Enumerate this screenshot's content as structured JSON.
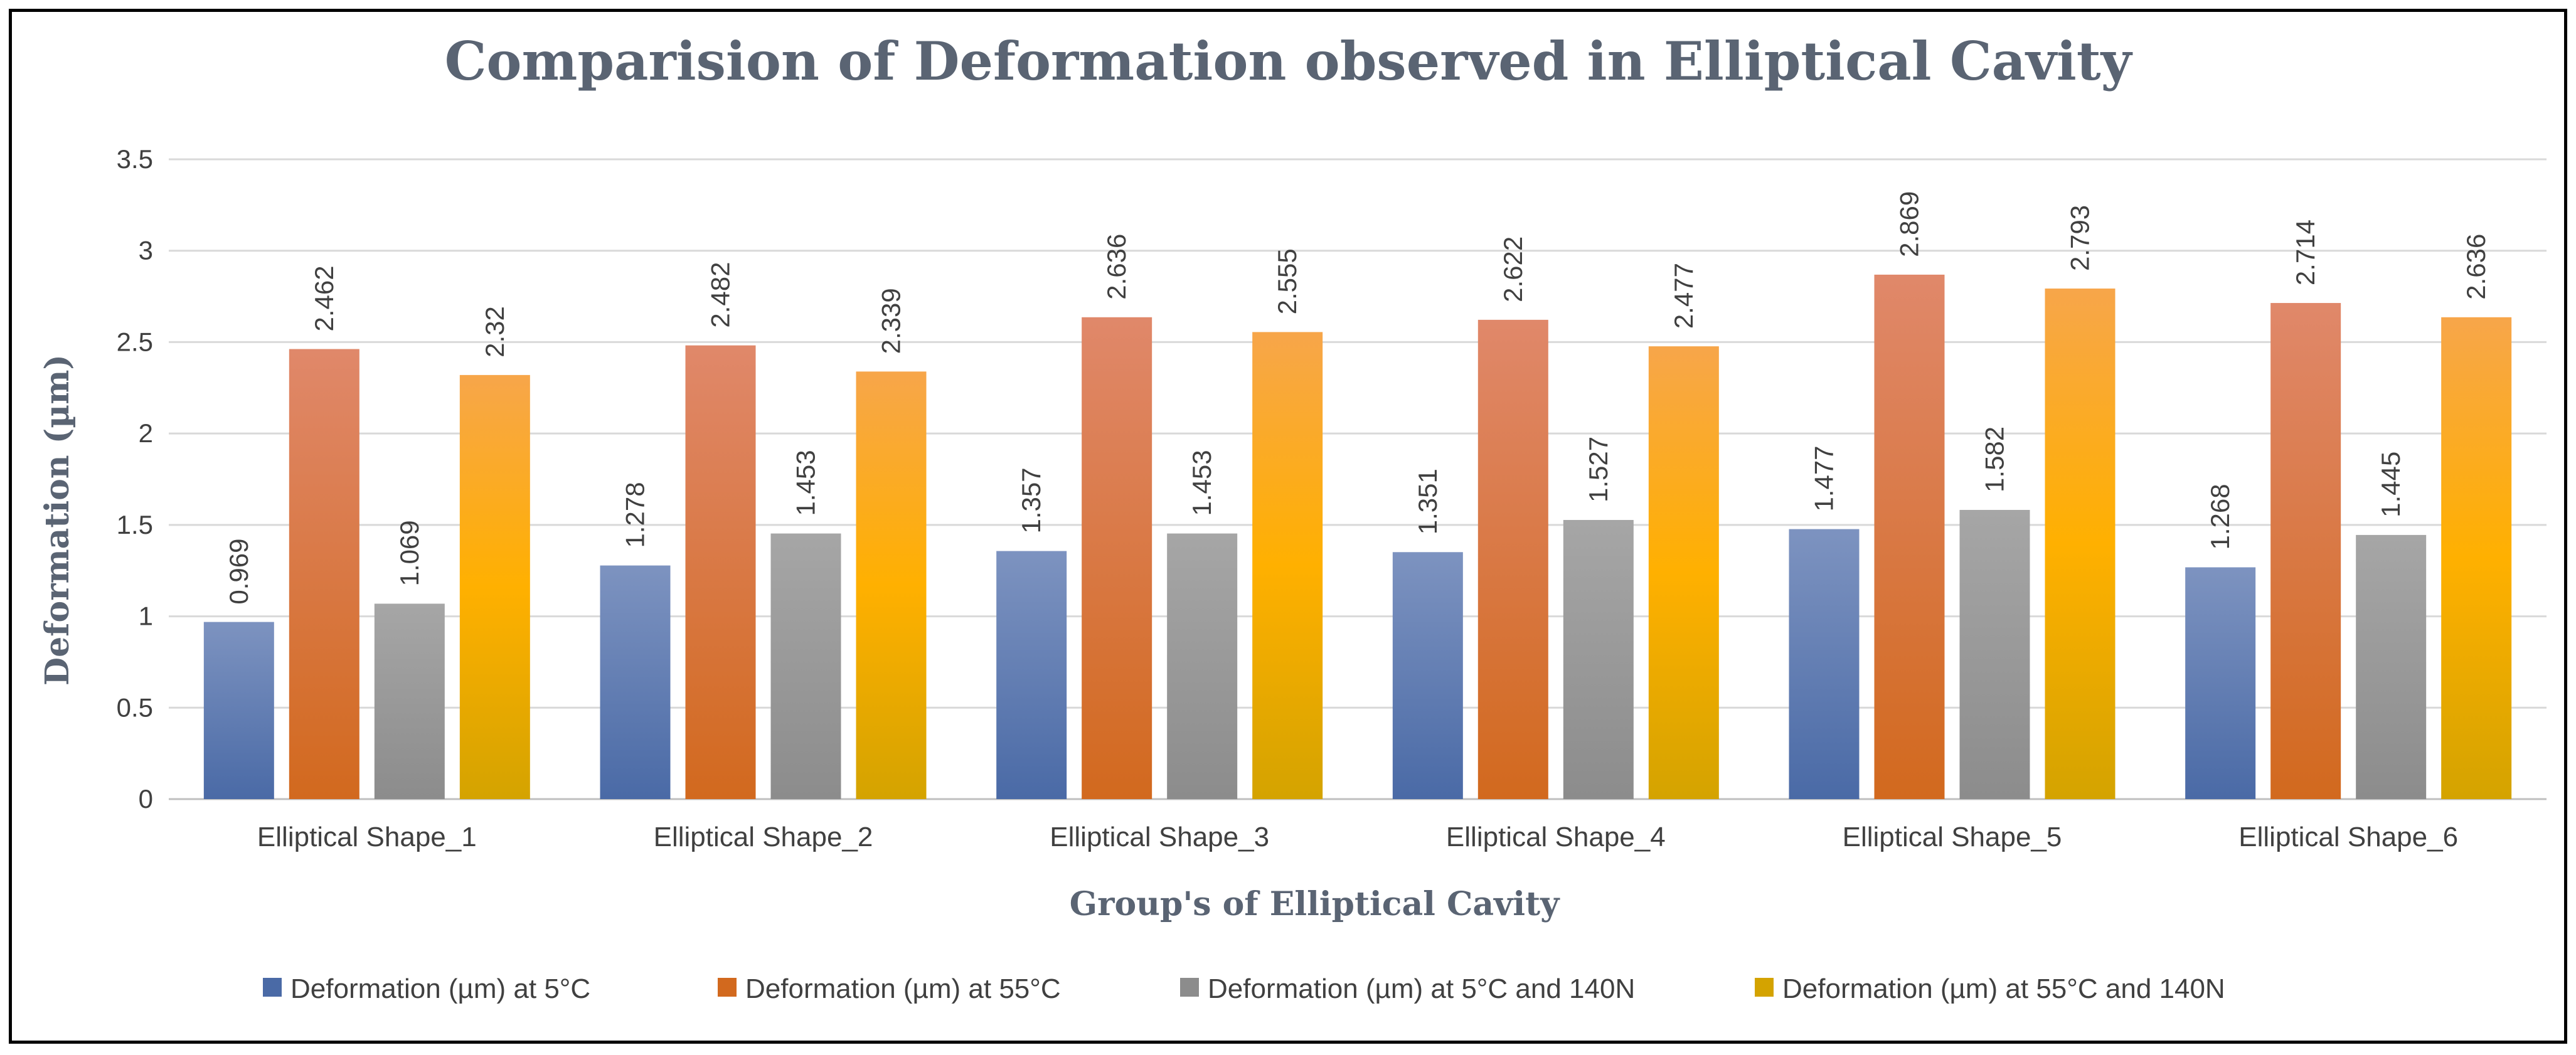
{
  "chart_data": {
    "type": "bar",
    "title": "Comparision of Deformation observed in Elliptical Cavity",
    "xlabel": "Group's of Elliptical Cavity",
    "ylabel": "Deformation (µm)",
    "ylim": [
      0,
      3.5
    ],
    "yticks": [
      "0",
      "0.5",
      "1",
      "1.5",
      "2",
      "2.5",
      "3",
      "3.5"
    ],
    "grid": true,
    "legend_position": "bottom",
    "categories": [
      "Elliptical Shape_1",
      "Elliptical Shape_2",
      "Elliptical Shape_3",
      "Elliptical Shape_4",
      "Elliptical Shape_5",
      "Elliptical Shape_6"
    ],
    "series": [
      {
        "name": "Deformation (µm) at 5°C",
        "color": "#4a6aa6",
        "color_light": "#7d93c0",
        "values": [
          0.969,
          1.278,
          1.357,
          1.351,
          1.477,
          1.268
        ],
        "labels": [
          "0.969",
          "1.278",
          "1.357",
          "1.351",
          "1.477",
          "1.268"
        ]
      },
      {
        "name": "Deformation (µm) at 55°C",
        "color": "#d2691e",
        "color_light": "#e0886a",
        "values": [
          2.462,
          2.482,
          2.636,
          2.622,
          2.869,
          2.714
        ],
        "labels": [
          "2.462",
          "2.482",
          "2.636",
          "2.622",
          "2.869",
          "2.714"
        ]
      },
      {
        "name": "Deformation (µm) at 5°C and 140N",
        "color": "#8c8c8c",
        "color_light": "#a6a6a6",
        "values": [
          1.069,
          1.453,
          1.453,
          1.527,
          1.582,
          1.445
        ],
        "labels": [
          "1.069",
          "1.453",
          "1.453",
          "1.527",
          "1.582",
          "1.445"
        ]
      },
      {
        "name": "Deformation (µm) at 55°C and 140N",
        "color": "#d4a300",
        "color_light": "#f7a64a",
        "color_mid": "#ffb000",
        "values": [
          2.32,
          2.339,
          2.555,
          2.477,
          2.793,
          2.636
        ],
        "labels": [
          "2.32",
          "2.339",
          "2.555",
          "2.477",
          "2.793",
          "2.636"
        ]
      }
    ]
  }
}
